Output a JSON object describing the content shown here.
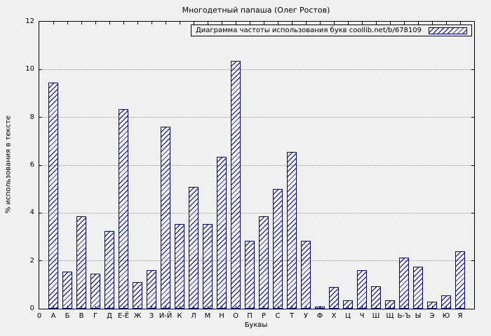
{
  "title": "Многодетный папаша (Олег Ростов)",
  "legend_label": "Диаграмма частоты использования букв coollib.net/b/678109",
  "chart_data": {
    "type": "bar",
    "title": "Многодетный папаша (Олег Ростов)",
    "xlabel": "Буквы",
    "ylabel": "% использования в тексте",
    "origin_label": "0",
    "categories": [
      "А",
      "Б",
      "В",
      "Г",
      "Д",
      "Е-Ё",
      "Ж",
      "З",
      "И-Й",
      "К",
      "Л",
      "М",
      "Н",
      "О",
      "П",
      "Р",
      "С",
      "Т",
      "У",
      "Ф",
      "Х",
      "Ц",
      "Ч",
      "Ш",
      "Щ",
      "Ь-Ъ",
      "Ы",
      "Э",
      "Ю",
      "Я"
    ],
    "values": [
      9.45,
      1.55,
      3.85,
      1.45,
      3.25,
      8.35,
      1.1,
      1.6,
      7.6,
      3.55,
      5.1,
      3.55,
      6.35,
      10.35,
      2.85,
      3.85,
      5.0,
      6.55,
      2.85,
      0.1,
      0.9,
      0.35,
      1.6,
      0.95,
      0.35,
      2.15,
      1.75,
      0.3,
      0.55,
      2.4
    ],
    "ylim": [
      0,
      12
    ],
    "yticks": [
      0,
      2,
      4,
      6,
      8,
      10,
      12
    ],
    "grid": true,
    "legend_position": "top-right",
    "bar_color": "#00008b",
    "grid_color": "#9a9a9a",
    "background": "#f0f0f0"
  }
}
